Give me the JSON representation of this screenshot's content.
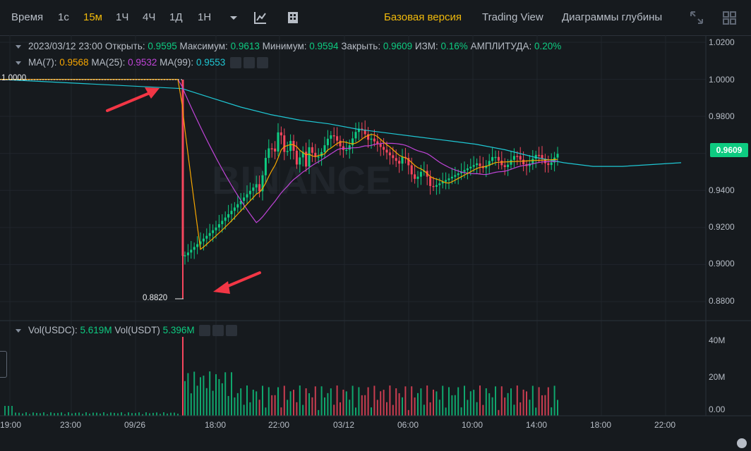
{
  "toolbar": {
    "time_label": "Время",
    "intervals": [
      "1с",
      "15м",
      "1Ч",
      "4Ч",
      "1Д",
      "1Н"
    ],
    "active_interval": "15м",
    "views": [
      "Базовая версия",
      "Trading View",
      "Диаграммы глубины"
    ],
    "active_view": "Базовая версия"
  },
  "legend": {
    "date": "2023/03/12 23:00",
    "open_label": "Открыть:",
    "open": "0.9595",
    "high_label": "Максимум:",
    "high": "0.9613",
    "low_label": "Минимум:",
    "low": "0.9594",
    "close_label": "Закрыть:",
    "close": "0.9609",
    "change_label": "ИЗМ:",
    "change": "0.16%",
    "amp_label": "АМПЛИТУДА:",
    "amp": "0.20%",
    "ma7_label": "MA(7):",
    "ma7": "0.9568",
    "ma25_label": "MA(25):",
    "ma25": "0.9532",
    "ma99_label": "MA(99):",
    "ma99": "0.9553"
  },
  "vol_legend": {
    "usdc_label": "Vol(USDC):",
    "usdc": "5.619M",
    "usdt_label": "Vol(USDT)",
    "usdt": "5.396M"
  },
  "price_axis": [
    "1.0200",
    "1.0000",
    "0.9800",
    "0.9600",
    "0.9400",
    "0.9200",
    "0.9000",
    "0.8800"
  ],
  "volume_axis": [
    "40M",
    "20M",
    "0.00"
  ],
  "time_axis": [
    "19:00",
    "23:00",
    "09/26",
    "18:00",
    "22:00",
    "03/12",
    "06:00",
    "10:00",
    "14:00",
    "18:00",
    "22:00"
  ],
  "current_price": "0.9609",
  "annotations": {
    "high_mark": "1.0000",
    "low_mark": "0.8820"
  },
  "watermark": "BINANCE",
  "colors": {
    "up": "#0ecb81",
    "down": "#f6465d",
    "ma7": "#f7a600",
    "ma25": "#c044d8",
    "ma99": "#1fc7d4",
    "arrow": "#f23645"
  },
  "chart_data": {
    "type": "candlestick",
    "ylim": [
      0.876,
      1.022
    ],
    "high_price": 1.0,
    "low_price": 0.882,
    "ma99_values": [
      1.0,
      0.995,
      0.99,
      0.985,
      0.981,
      0.978,
      0.976,
      0.973,
      0.971,
      0.969,
      0.967,
      0.965,
      0.962,
      0.958,
      0.955,
      0.953,
      0.953,
      0.954,
      0.955
    ]
  }
}
